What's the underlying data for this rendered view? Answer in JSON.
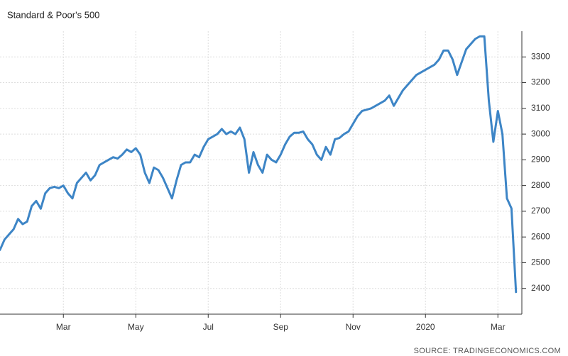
{
  "chart_data": {
    "type": "line",
    "title": "Standard & Poor's 500",
    "source": "SOURCE: TRADINGECONOMICS.COM",
    "categories": [
      null,
      null,
      null,
      null,
      null,
      null,
      null,
      null,
      null,
      null,
      null,
      null,
      null,
      null,
      "Mar",
      null,
      null,
      null,
      null,
      null,
      null,
      null,
      null,
      null,
      null,
      null,
      null,
      null,
      null,
      null,
      "May",
      null,
      null,
      null,
      null,
      null,
      null,
      null,
      null,
      null,
      null,
      null,
      null,
      null,
      null,
      null,
      "Jul",
      null,
      null,
      null,
      null,
      null,
      null,
      null,
      null,
      null,
      null,
      null,
      null,
      null,
      null,
      null,
      "Sep",
      null,
      null,
      null,
      null,
      null,
      null,
      null,
      null,
      null,
      null,
      null,
      null,
      null,
      null,
      null,
      "Nov",
      null,
      null,
      null,
      null,
      null,
      null,
      null,
      null,
      null,
      null,
      null,
      null,
      null,
      null,
      null,
      "2020",
      null,
      null,
      null,
      null,
      null,
      null,
      null,
      null,
      null,
      null,
      null,
      null,
      null,
      null,
      null,
      "Mar",
      null,
      null,
      null,
      null
    ],
    "values": [
      2550,
      2590,
      2610,
      2630,
      2670,
      2650,
      2660,
      2720,
      2740,
      2710,
      2770,
      2790,
      2795,
      2790,
      2800,
      2770,
      2750,
      2810,
      2830,
      2850,
      2820,
      2840,
      2880,
      2890,
      2900,
      2910,
      2905,
      2920,
      2940,
      2930,
      2945,
      2920,
      2850,
      2810,
      2870,
      2860,
      2830,
      2790,
      2750,
      2820,
      2880,
      2890,
      2890,
      2920,
      2910,
      2950,
      2980,
      2990,
      3000,
      3020,
      3000,
      3010,
      3000,
      3025,
      2980,
      2850,
      2930,
      2880,
      2850,
      2920,
      2900,
      2890,
      2920,
      2960,
      2990,
      3005,
      3005,
      3010,
      2980,
      2960,
      2920,
      2900,
      2950,
      2920,
      2980,
      2985,
      3000,
      3010,
      3040,
      3070,
      3090,
      3095,
      3100,
      3110,
      3120,
      3130,
      3150,
      3110,
      3140,
      3170,
      3190,
      3210,
      3230,
      3240,
      3250,
      3260,
      3270,
      3290,
      3325,
      3325,
      3290,
      3230,
      3280,
      3330,
      3350,
      3370,
      3380,
      3380,
      3130,
      2970,
      3090,
      3000,
      2750,
      2711,
      2386
    ],
    "color": "#3d85c6",
    "ylim": [
      2300,
      3400
    ],
    "yticks": [
      2400,
      2500,
      2600,
      2700,
      2800,
      2900,
      3000,
      3100,
      3200,
      3300
    ],
    "grid": true
  }
}
